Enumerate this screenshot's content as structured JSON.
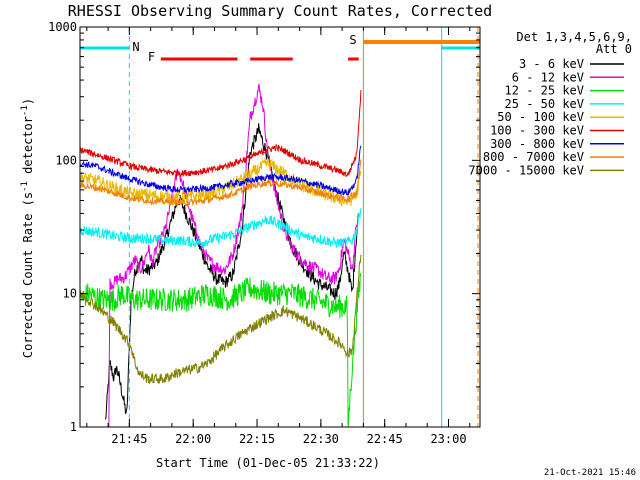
{
  "colors": {
    "black": "#000000",
    "magenta": "#e000e0",
    "green": "#00dd00",
    "cyan": "#00f0f0",
    "gold": "#e8b800",
    "red": "#e00000",
    "blue": "#0000e0",
    "orange": "#f08000",
    "olive": "#808000",
    "bar_cyan": "#00e0f0",
    "bar_red": "#ff0000",
    "bar_orange": "#ff8000"
  },
  "chart_data": {
    "type": "line",
    "title": "RHESSI Observing Summary Count Rates, Corrected",
    "xlabel": "Start Time (01-Dec-05 21:33:22)",
    "ylabel_main": "Corrected Count Rate (s",
    "ylabel_sup1": "-1",
    "ylabel_mid": " detector",
    "ylabel_sup2": "-1",
    "ylabel_end": ")",
    "yscale": "log",
    "ylim": [
      1,
      1000
    ],
    "y_ticks": [
      1,
      10,
      100,
      1000
    ],
    "y_tick_labels": [
      "1",
      "10",
      "100",
      "1000"
    ],
    "xlim_minutes": [
      0,
      94
    ],
    "x_ticks_minutes": [
      11.6,
      26.6,
      41.6,
      56.6,
      71.6,
      86.6
    ],
    "x_tick_labels": [
      "21:45",
      "22:00",
      "22:15",
      "22:30",
      "22:45",
      "23:00"
    ],
    "legend": {
      "header1": "Det 1,3,4,5,6,9,",
      "header2": "Att 0",
      "placement": "right"
    },
    "series": [
      {
        "name": "3 - 6 keV",
        "color": "#000000",
        "x": [
          6,
          7,
          8,
          8.5,
          9,
          11,
          12,
          13,
          14,
          14.5,
          15,
          16,
          18,
          20,
          22,
          23,
          24,
          26,
          28,
          30,
          32,
          34,
          36,
          38,
          40,
          42,
          44,
          46,
          48,
          50,
          52,
          54,
          56,
          58,
          60,
          61,
          62,
          63,
          64,
          65,
          65.5
        ],
        "y": [
          1.1,
          3,
          2.3,
          2.8,
          2.5,
          1.2,
          9,
          15,
          17,
          18,
          15,
          15,
          17,
          25,
          40,
          52,
          47,
          33,
          23,
          16,
          13,
          12,
          14,
          30,
          115,
          170,
          110,
          60,
          35,
          22,
          17,
          14,
          12,
          11,
          10,
          12,
          20,
          15,
          10,
          28,
          40
        ]
      },
      {
        "name": "6 - 12 keV",
        "color": "#e000e0",
        "x": [
          6.8,
          7,
          8,
          9,
          10,
          11,
          12,
          13,
          14,
          15,
          16,
          17,
          18,
          20,
          22,
          23,
          24,
          26,
          28,
          30,
          32,
          34,
          36,
          38,
          40,
          42,
          43,
          44,
          46,
          48,
          50,
          52,
          54,
          56,
          58,
          60,
          61,
          62,
          63,
          64,
          65
        ],
        "y": [
          1,
          12,
          12,
          13,
          13,
          14,
          16,
          18,
          15,
          17,
          22,
          17,
          22,
          30,
          60,
          85,
          70,
          40,
          25,
          18,
          16,
          15,
          20,
          40,
          210,
          350,
          260,
          120,
          55,
          30,
          22,
          18,
          16,
          15,
          13,
          13,
          16,
          25,
          20,
          15,
          35
        ]
      },
      {
        "name": "12 - 25 keV",
        "color": "#00dd00",
        "x": [
          0,
          2,
          5,
          8,
          10,
          12,
          15,
          20,
          25,
          30,
          35,
          40,
          45,
          50,
          55,
          60,
          62.8,
          63,
          64,
          65,
          66
        ],
        "y": [
          9,
          10,
          9,
          9,
          10,
          9,
          9,
          9,
          9,
          10,
          9,
          11,
          10,
          10,
          9,
          8,
          8,
          1,
          3,
          7,
          14
        ]
      },
      {
        "name": "25 - 50 keV",
        "color": "#00f0f0",
        "x": [
          0,
          4,
          8,
          12,
          16,
          20,
          24,
          28,
          32,
          36,
          40,
          44,
          48,
          52,
          56,
          60,
          62,
          64,
          65,
          66
        ],
        "y": [
          30,
          29,
          27,
          26,
          26,
          25,
          25,
          24,
          26,
          28,
          32,
          36,
          32,
          27,
          26,
          24,
          24,
          25,
          30,
          45
        ]
      },
      {
        "name": "50 - 100 keV",
        "color": "#e8b800",
        "x": [
          0,
          4,
          8,
          12,
          16,
          20,
          24,
          28,
          32,
          36,
          40,
          44,
          48,
          52,
          56,
          60,
          63,
          65,
          66
        ],
        "y": [
          75,
          70,
          62,
          56,
          55,
          53,
          52,
          54,
          58,
          66,
          78,
          95,
          80,
          65,
          58,
          52,
          49,
          55,
          80
        ]
      },
      {
        "name": "100 - 300 keV",
        "color": "#e00000",
        "x": [
          0,
          4,
          8,
          12,
          16,
          20,
          24,
          28,
          32,
          36,
          40,
          44,
          46,
          48,
          52,
          56,
          60,
          63,
          65,
          66
        ],
        "y": [
          120,
          110,
          100,
          90,
          85,
          82,
          80,
          82,
          86,
          95,
          105,
          120,
          125,
          118,
          100,
          92,
          85,
          78,
          110,
          320
        ]
      },
      {
        "name": "300 - 800 keV",
        "color": "#0000e0",
        "x": [
          0,
          4,
          8,
          12,
          16,
          20,
          24,
          28,
          32,
          36,
          40,
          44,
          48,
          52,
          56,
          60,
          63,
          65,
          66
        ],
        "y": [
          95,
          90,
          80,
          72,
          66,
          62,
          60,
          61,
          63,
          67,
          70,
          75,
          74,
          70,
          65,
          60,
          57,
          70,
          130
        ]
      },
      {
        "name": "800 - 7000 keV",
        "color": "#f08000",
        "x": [
          0,
          4,
          8,
          12,
          16,
          20,
          24,
          28,
          32,
          36,
          40,
          44,
          48,
          52,
          56,
          60,
          63,
          65,
          66
        ],
        "y": [
          65,
          62,
          57,
          52,
          50,
          49,
          48,
          49,
          52,
          56,
          64,
          68,
          66,
          62,
          57,
          53,
          51,
          58,
          100
        ]
      },
      {
        "name": "7000 - 15000 keV",
        "color": "#808000",
        "x": [
          0,
          2,
          4,
          6,
          8,
          10,
          12,
          13,
          14,
          16,
          18,
          20,
          22,
          24,
          26,
          28,
          30,
          32,
          34,
          36,
          38,
          40,
          42,
          44,
          46,
          48,
          50,
          52,
          54,
          56,
          58,
          60,
          62,
          63,
          64,
          65,
          66
        ],
        "y": [
          10,
          9,
          8,
          7,
          6,
          5,
          4,
          3,
          2.5,
          2.3,
          2.3,
          2.3,
          2.5,
          2.6,
          2.7,
          2.8,
          3,
          3.5,
          4,
          4.5,
          5,
          5.5,
          6,
          6.5,
          7,
          7.5,
          7,
          6.5,
          6,
          5.5,
          5,
          4.5,
          4,
          3.5,
          3.8,
          9,
          20
        ]
      }
    ],
    "annotations": {
      "night_label": "N",
      "flare_label": "F",
      "saa_label": "S",
      "night_periods": [
        [
          0,
          11.6
        ],
        [
          85,
          94
        ]
      ],
      "flare_periods": [
        [
          19,
          37
        ],
        [
          40,
          50
        ],
        [
          63,
          65.5
        ]
      ],
      "saa_periods": [
        [
          66.6,
          94
        ]
      ],
      "solid_lines_minutes": [
        66.6,
        85
      ],
      "dashed_lines_minutes": [
        11.6,
        94
      ]
    }
  },
  "footer": {
    "timestamp": "21-Oct-2021 15:46"
  }
}
